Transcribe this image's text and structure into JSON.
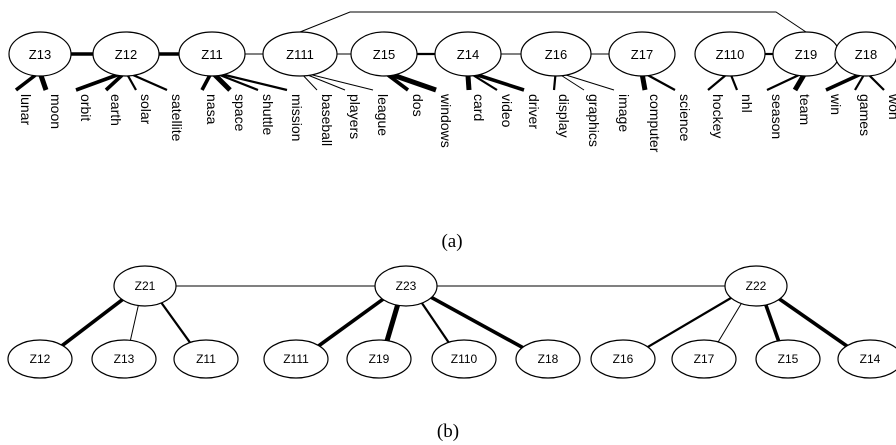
{
  "figure_a": {
    "caption": "(a)",
    "latent_nodes": [
      "Z13",
      "Z12",
      "Z11",
      "Z111",
      "Z15",
      "Z14",
      "Z16",
      "Z17",
      "Z110",
      "Z19",
      "Z18"
    ],
    "words": [
      "lunar",
      "moon",
      "orbit",
      "earth",
      "solar",
      "satellite",
      "nasa",
      "space",
      "shuttle",
      "mission",
      "baseball",
      "players",
      "league",
      "dos",
      "windows",
      "card",
      "video",
      "driver",
      "display",
      "graphics",
      "image",
      "computer",
      "science",
      "hockey",
      "nhl",
      "season",
      "team",
      "win",
      "games",
      "won"
    ],
    "latent_edges": [
      {
        "from": "Z13",
        "to": "Z12",
        "weight": "thick"
      },
      {
        "from": "Z12",
        "to": "Z11",
        "weight": "thick"
      },
      {
        "from": "Z11",
        "to": "Z111",
        "weight": "thin"
      },
      {
        "from": "Z111",
        "to": "Z15",
        "weight": "thin"
      },
      {
        "from": "Z15",
        "to": "Z14",
        "weight": "medium"
      },
      {
        "from": "Z14",
        "to": "Z16",
        "weight": "thin"
      },
      {
        "from": "Z16",
        "to": "Z17",
        "weight": "thin"
      },
      {
        "from": "Z111",
        "to": "Z19",
        "weight": "thin"
      },
      {
        "from": "Z110",
        "to": "Z19",
        "weight": "medium"
      },
      {
        "from": "Z19",
        "to": "Z18",
        "weight": "thick"
      }
    ],
    "word_edges": [
      {
        "from": "Z13",
        "to": "lunar",
        "weight": "thick"
      },
      {
        "from": "Z13",
        "to": "moon",
        "weight": "heavy"
      },
      {
        "from": "Z12",
        "to": "orbit",
        "weight": "thick"
      },
      {
        "from": "Z12",
        "to": "earth",
        "weight": "thick"
      },
      {
        "from": "Z12",
        "to": "solar",
        "weight": "medium"
      },
      {
        "from": "Z12",
        "to": "satellite",
        "weight": "medium"
      },
      {
        "from": "Z11",
        "to": "nasa",
        "weight": "thick"
      },
      {
        "from": "Z11",
        "to": "space",
        "weight": "heavy"
      },
      {
        "from": "Z11",
        "to": "shuttle",
        "weight": "medium"
      },
      {
        "from": "Z11",
        "to": "mission",
        "weight": "medium"
      },
      {
        "from": "Z111",
        "to": "baseball",
        "weight": "thin"
      },
      {
        "from": "Z111",
        "to": "players",
        "weight": "thin"
      },
      {
        "from": "Z111",
        "to": "league",
        "weight": "thin"
      },
      {
        "from": "Z15",
        "to": "dos",
        "weight": "thick"
      },
      {
        "from": "Z15",
        "to": "windows",
        "weight": "heavy"
      },
      {
        "from": "Z14",
        "to": "card",
        "weight": "heavy"
      },
      {
        "from": "Z14",
        "to": "video",
        "weight": "medium"
      },
      {
        "from": "Z14",
        "to": "driver",
        "weight": "thick"
      },
      {
        "from": "Z16",
        "to": "display",
        "weight": "medium"
      },
      {
        "from": "Z16",
        "to": "graphics",
        "weight": "thin"
      },
      {
        "from": "Z16",
        "to": "image",
        "weight": "thin"
      },
      {
        "from": "Z17",
        "to": "computer",
        "weight": "heavy"
      },
      {
        "from": "Z17",
        "to": "science",
        "weight": "medium"
      },
      {
        "from": "Z110",
        "to": "hockey",
        "weight": "medium"
      },
      {
        "from": "Z110",
        "to": "nhl",
        "weight": "medium"
      },
      {
        "from": "Z19",
        "to": "season",
        "weight": "medium"
      },
      {
        "from": "Z19",
        "to": "team",
        "weight": "heavy"
      },
      {
        "from": "Z18",
        "to": "win",
        "weight": "thick"
      },
      {
        "from": "Z18",
        "to": "games",
        "weight": "medium"
      },
      {
        "from": "Z18",
        "to": "won",
        "weight": "medium"
      }
    ]
  },
  "figure_b": {
    "caption": "(b)",
    "top_nodes": [
      "Z21",
      "Z23",
      "Z22"
    ],
    "bottom_nodes": [
      "Z12",
      "Z13",
      "Z11",
      "Z111",
      "Z19",
      "Z110",
      "Z18",
      "Z16",
      "Z17",
      "Z15",
      "Z14"
    ],
    "top_edges": [
      {
        "from": "Z21",
        "to": "Z23",
        "weight": "thin"
      },
      {
        "from": "Z23",
        "to": "Z22",
        "weight": "thin"
      }
    ],
    "child_edges": [
      {
        "from": "Z21",
        "to": "Z12",
        "weight": "thick"
      },
      {
        "from": "Z21",
        "to": "Z13",
        "weight": "thin"
      },
      {
        "from": "Z21",
        "to": "Z11",
        "weight": "medium"
      },
      {
        "from": "Z23",
        "to": "Z111",
        "weight": "thick"
      },
      {
        "from": "Z23",
        "to": "Z19",
        "weight": "heavy"
      },
      {
        "from": "Z23",
        "to": "Z110",
        "weight": "medium"
      },
      {
        "from": "Z23",
        "to": "Z18",
        "weight": "thick"
      },
      {
        "from": "Z22",
        "to": "Z16",
        "weight": "medium"
      },
      {
        "from": "Z22",
        "to": "Z17",
        "weight": "thin"
      },
      {
        "from": "Z22",
        "to": "Z15",
        "weight": "thick"
      },
      {
        "from": "Z22",
        "to": "Z14",
        "weight": "thick"
      }
    ]
  }
}
